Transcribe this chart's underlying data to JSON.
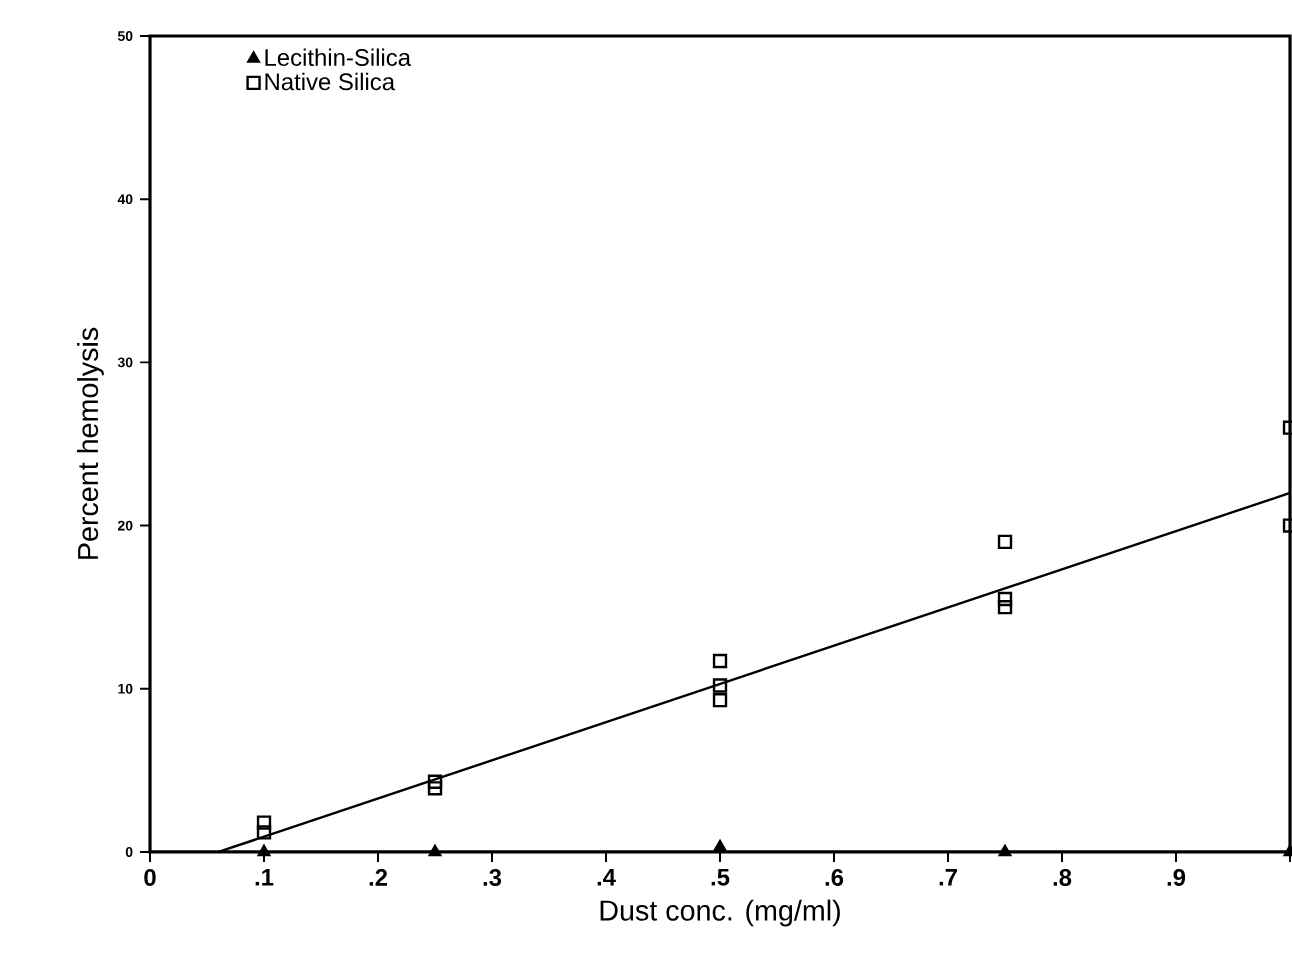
{
  "chart_data": {
    "type": "scatter",
    "xlabel": "Dust conc. (mg/ml)",
    "ylabel": "Percent hemolysis",
    "xlim": [
      0,
      1
    ],
    "ylim": [
      0,
      50
    ],
    "xticks": [
      0,
      {
        "value": 0.1,
        "label": ".1"
      },
      {
        "value": 0.2,
        "label": ".2"
      },
      {
        "value": 0.3,
        "label": ".3"
      },
      {
        "value": 0.4,
        "label": ".4"
      },
      {
        "value": 0.5,
        "label": ".5"
      },
      {
        "value": 0.6,
        "label": ".6"
      },
      {
        "value": 0.7,
        "label": ".7"
      },
      {
        "value": 0.8,
        "label": ".8"
      },
      {
        "value": 0.9,
        "label": ".9"
      },
      {
        "value": 1,
        "label": null
      }
    ],
    "yticks": [
      0,
      10,
      20,
      30,
      40,
      50
    ],
    "grid": false,
    "legend": "top left",
    "series": [
      {
        "name": "Lecithin-Silica",
        "color": "#000000",
        "marker": "triangle",
        "x": [
          0.1,
          0.25,
          0.5,
          0.75,
          1.0
        ],
        "values": [
          0,
          0,
          0.3,
          0,
          0
        ]
      },
      {
        "name": "Native Silica",
        "color": "#000000",
        "marker": "square",
        "x": [
          0.1,
          0.1,
          0.25,
          0.25,
          0.5,
          0.5,
          0.5,
          0.75,
          0.75,
          0.75,
          1.0,
          1.0
        ],
        "values": [
          1.8,
          1.2,
          4.3,
          3.9,
          11.7,
          10.2,
          9.3,
          19.0,
          15.5,
          15.0,
          26,
          20
        ]
      },
      {
        "type": "line",
        "color": "#000000",
        "marker": "none",
        "x": [
          0.06,
          1.0
        ],
        "values": [
          0,
          22
        ]
      }
    ]
  }
}
